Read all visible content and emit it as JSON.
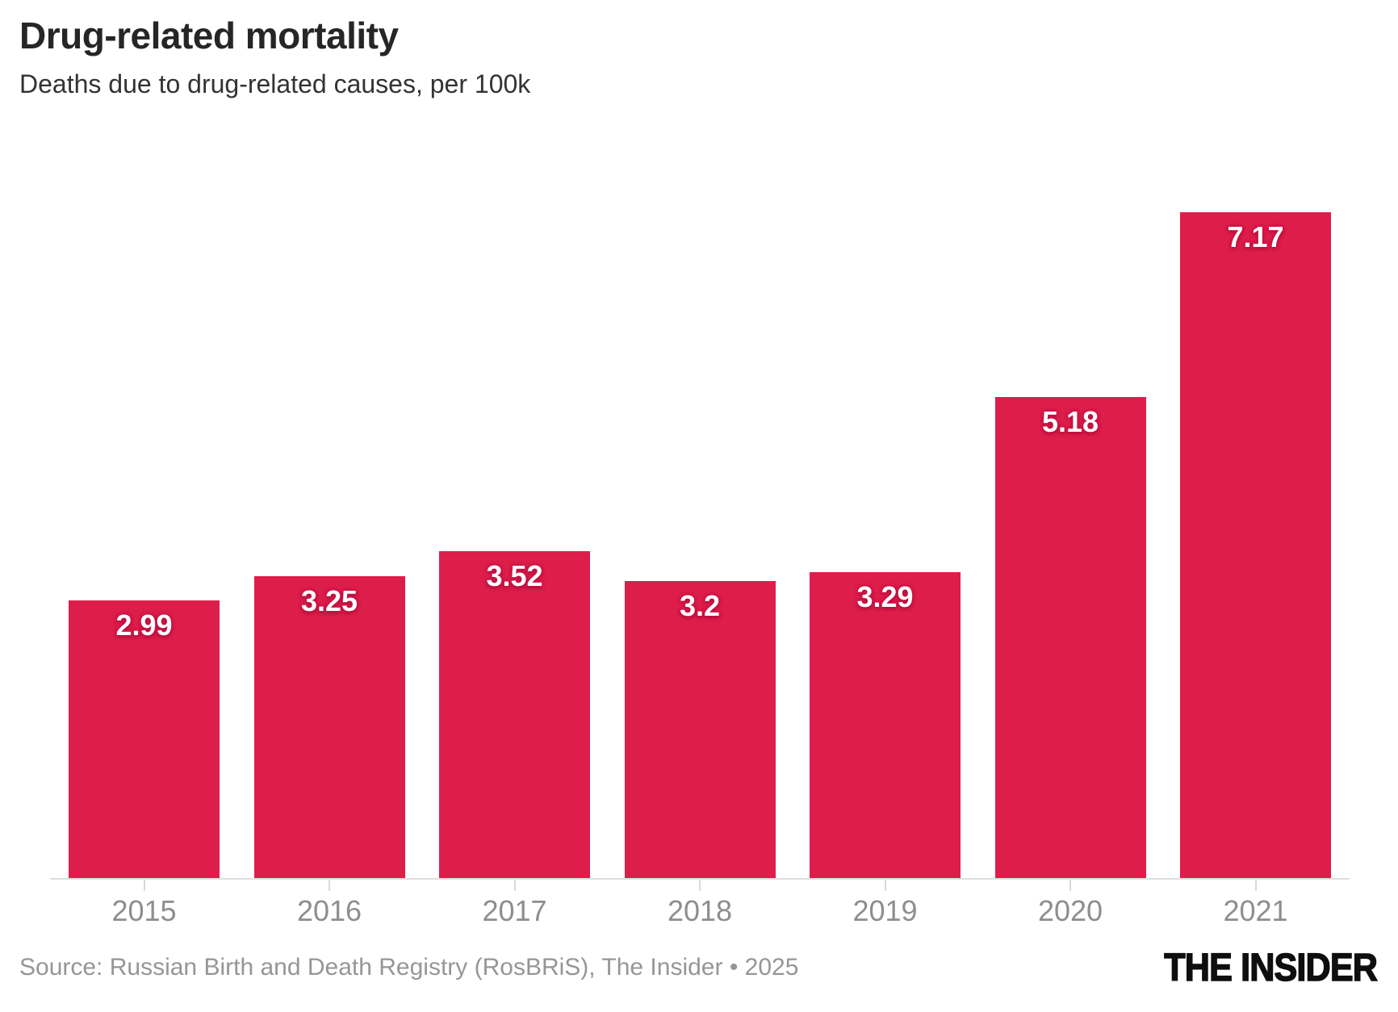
{
  "header": {
    "title": "Drug-related mortality",
    "subtitle": "Deaths due to drug-related causes, per 100k"
  },
  "chart_data": {
    "type": "bar",
    "categories": [
      "2015",
      "2016",
      "2017",
      "2018",
      "2019",
      "2020",
      "2021"
    ],
    "values": [
      2.99,
      3.25,
      3.52,
      3.2,
      3.29,
      5.18,
      7.17
    ],
    "title": "Drug-related mortality",
    "subtitle": "Deaths due to drug-related causes, per 100k",
    "xlabel": "",
    "ylabel": "",
    "ylim": [
      0,
      7.17
    ],
    "grid": false,
    "legend": false,
    "y_axis_visible": false,
    "value_labels_position": "inside-top",
    "bar_color": "#dd1d4a",
    "value_label_color": "#ffffff",
    "value_label_halo_color": "#c51043",
    "axis_line_color": "#dedede",
    "tick_color": "#d9d9d9",
    "x_label_color": "#8e8e8e"
  },
  "footer": {
    "source_label": "Source: Russian Birth and Death Registry (RosBRiS), The Insider • 2025",
    "logo": "THE INSIDER"
  },
  "colors": {
    "background": "#ffffff",
    "title_text": "#262626",
    "subtitle_text": "#333333",
    "source_text": "#969696",
    "logo_text": "#0e0e0e"
  }
}
